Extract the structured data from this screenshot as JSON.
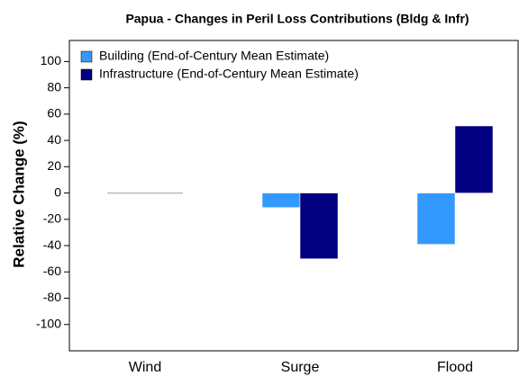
{
  "chart_data": {
    "type": "bar",
    "title": "Papua - Changes in Peril Loss Contributions (Bldg & Infr)",
    "y_label": "Relative Change (%)",
    "categories": [
      "Wind",
      "Surge",
      "Flood"
    ],
    "series": [
      {
        "name": "Building (End-of-Century Mean Estimate)",
        "color": "#3399ff",
        "values": [
          0,
          -11,
          -39
        ]
      },
      {
        "name": "Infrastructure (End-of-Century Mean Estimate)",
        "color": "#000080",
        "values": [
          0,
          -50,
          51
        ]
      }
    ],
    "ylim": [
      -120,
      116
    ],
    "yticks": [
      -100,
      -80,
      -60,
      -40,
      -20,
      0,
      20,
      40,
      60,
      80,
      100
    ],
    "legend": "top-left"
  }
}
